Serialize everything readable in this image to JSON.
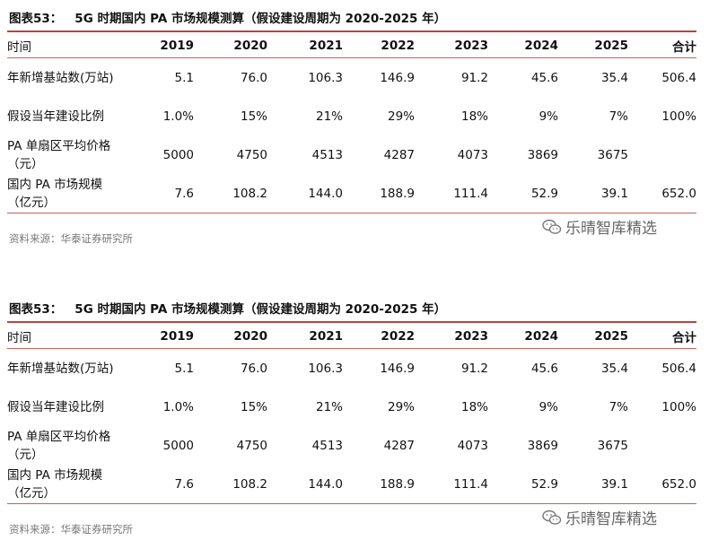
{
  "tables": [
    {
      "figure_label": "图表53：",
      "title": "5G 时期国内 PA 市场规模测算（假设建设周期为 2020-2025 年）",
      "header": [
        "时间",
        "2019",
        "2020",
        "2021",
        "2022",
        "2023",
        "2024",
        "2025",
        "合计"
      ],
      "rows": [
        [
          "年新增基站数(万站)",
          "5.1",
          "76.0",
          "106.3",
          "146.9",
          "91.2",
          "45.6",
          "35.4",
          "506.4"
        ],
        [
          "假设当年建设比例",
          "1.0%",
          "15%",
          "21%",
          "29%",
          "18%",
          "9%",
          "7%",
          "100%"
        ],
        [
          "PA 单扇区平均价格（元）",
          "5000",
          "4750",
          "4513",
          "4287",
          "4073",
          "3869",
          "3675",
          ""
        ],
        [
          "国内 PA 市场规模（亿元）",
          "7.6",
          "108.2",
          "144.0",
          "188.9",
          "111.4",
          "52.9",
          "39.1",
          "652.0"
        ]
      ],
      "source": "资料来源：华泰证券研究所",
      "watermark": "乐晴智库精选"
    },
    {
      "figure_label": "图表53：",
      "title": "5G 时期国内 PA 市场规模测算（假设建设周期为 2020-2025 年）",
      "header": [
        "时间",
        "2019",
        "2020",
        "2021",
        "2022",
        "2023",
        "2024",
        "2025",
        "合计"
      ],
      "rows": [
        [
          "年新增基站数(万站)",
          "5.1",
          "76.0",
          "106.3",
          "146.9",
          "91.2",
          "45.6",
          "35.4",
          "506.4"
        ],
        [
          "假设当年建设比例",
          "1.0%",
          "15%",
          "21%",
          "29%",
          "18%",
          "9%",
          "7%",
          "100%"
        ],
        [
          "PA 单扇区平均价格（元）",
          "5000",
          "4750",
          "4513",
          "4287",
          "4073",
          "3869",
          "3675",
          ""
        ],
        [
          "国内 PA 市场规模（亿元）",
          "7.6",
          "108.2",
          "144.0",
          "188.9",
          "111.4",
          "52.9",
          "39.1",
          "652.0"
        ]
      ],
      "source": "资料来源：华泰证券研究所",
      "watermark": "乐晴智库精选"
    }
  ],
  "watermark_icon": "wechat-icon",
  "colors": {
    "rule": "#b5473c",
    "source_text": "#777777"
  }
}
